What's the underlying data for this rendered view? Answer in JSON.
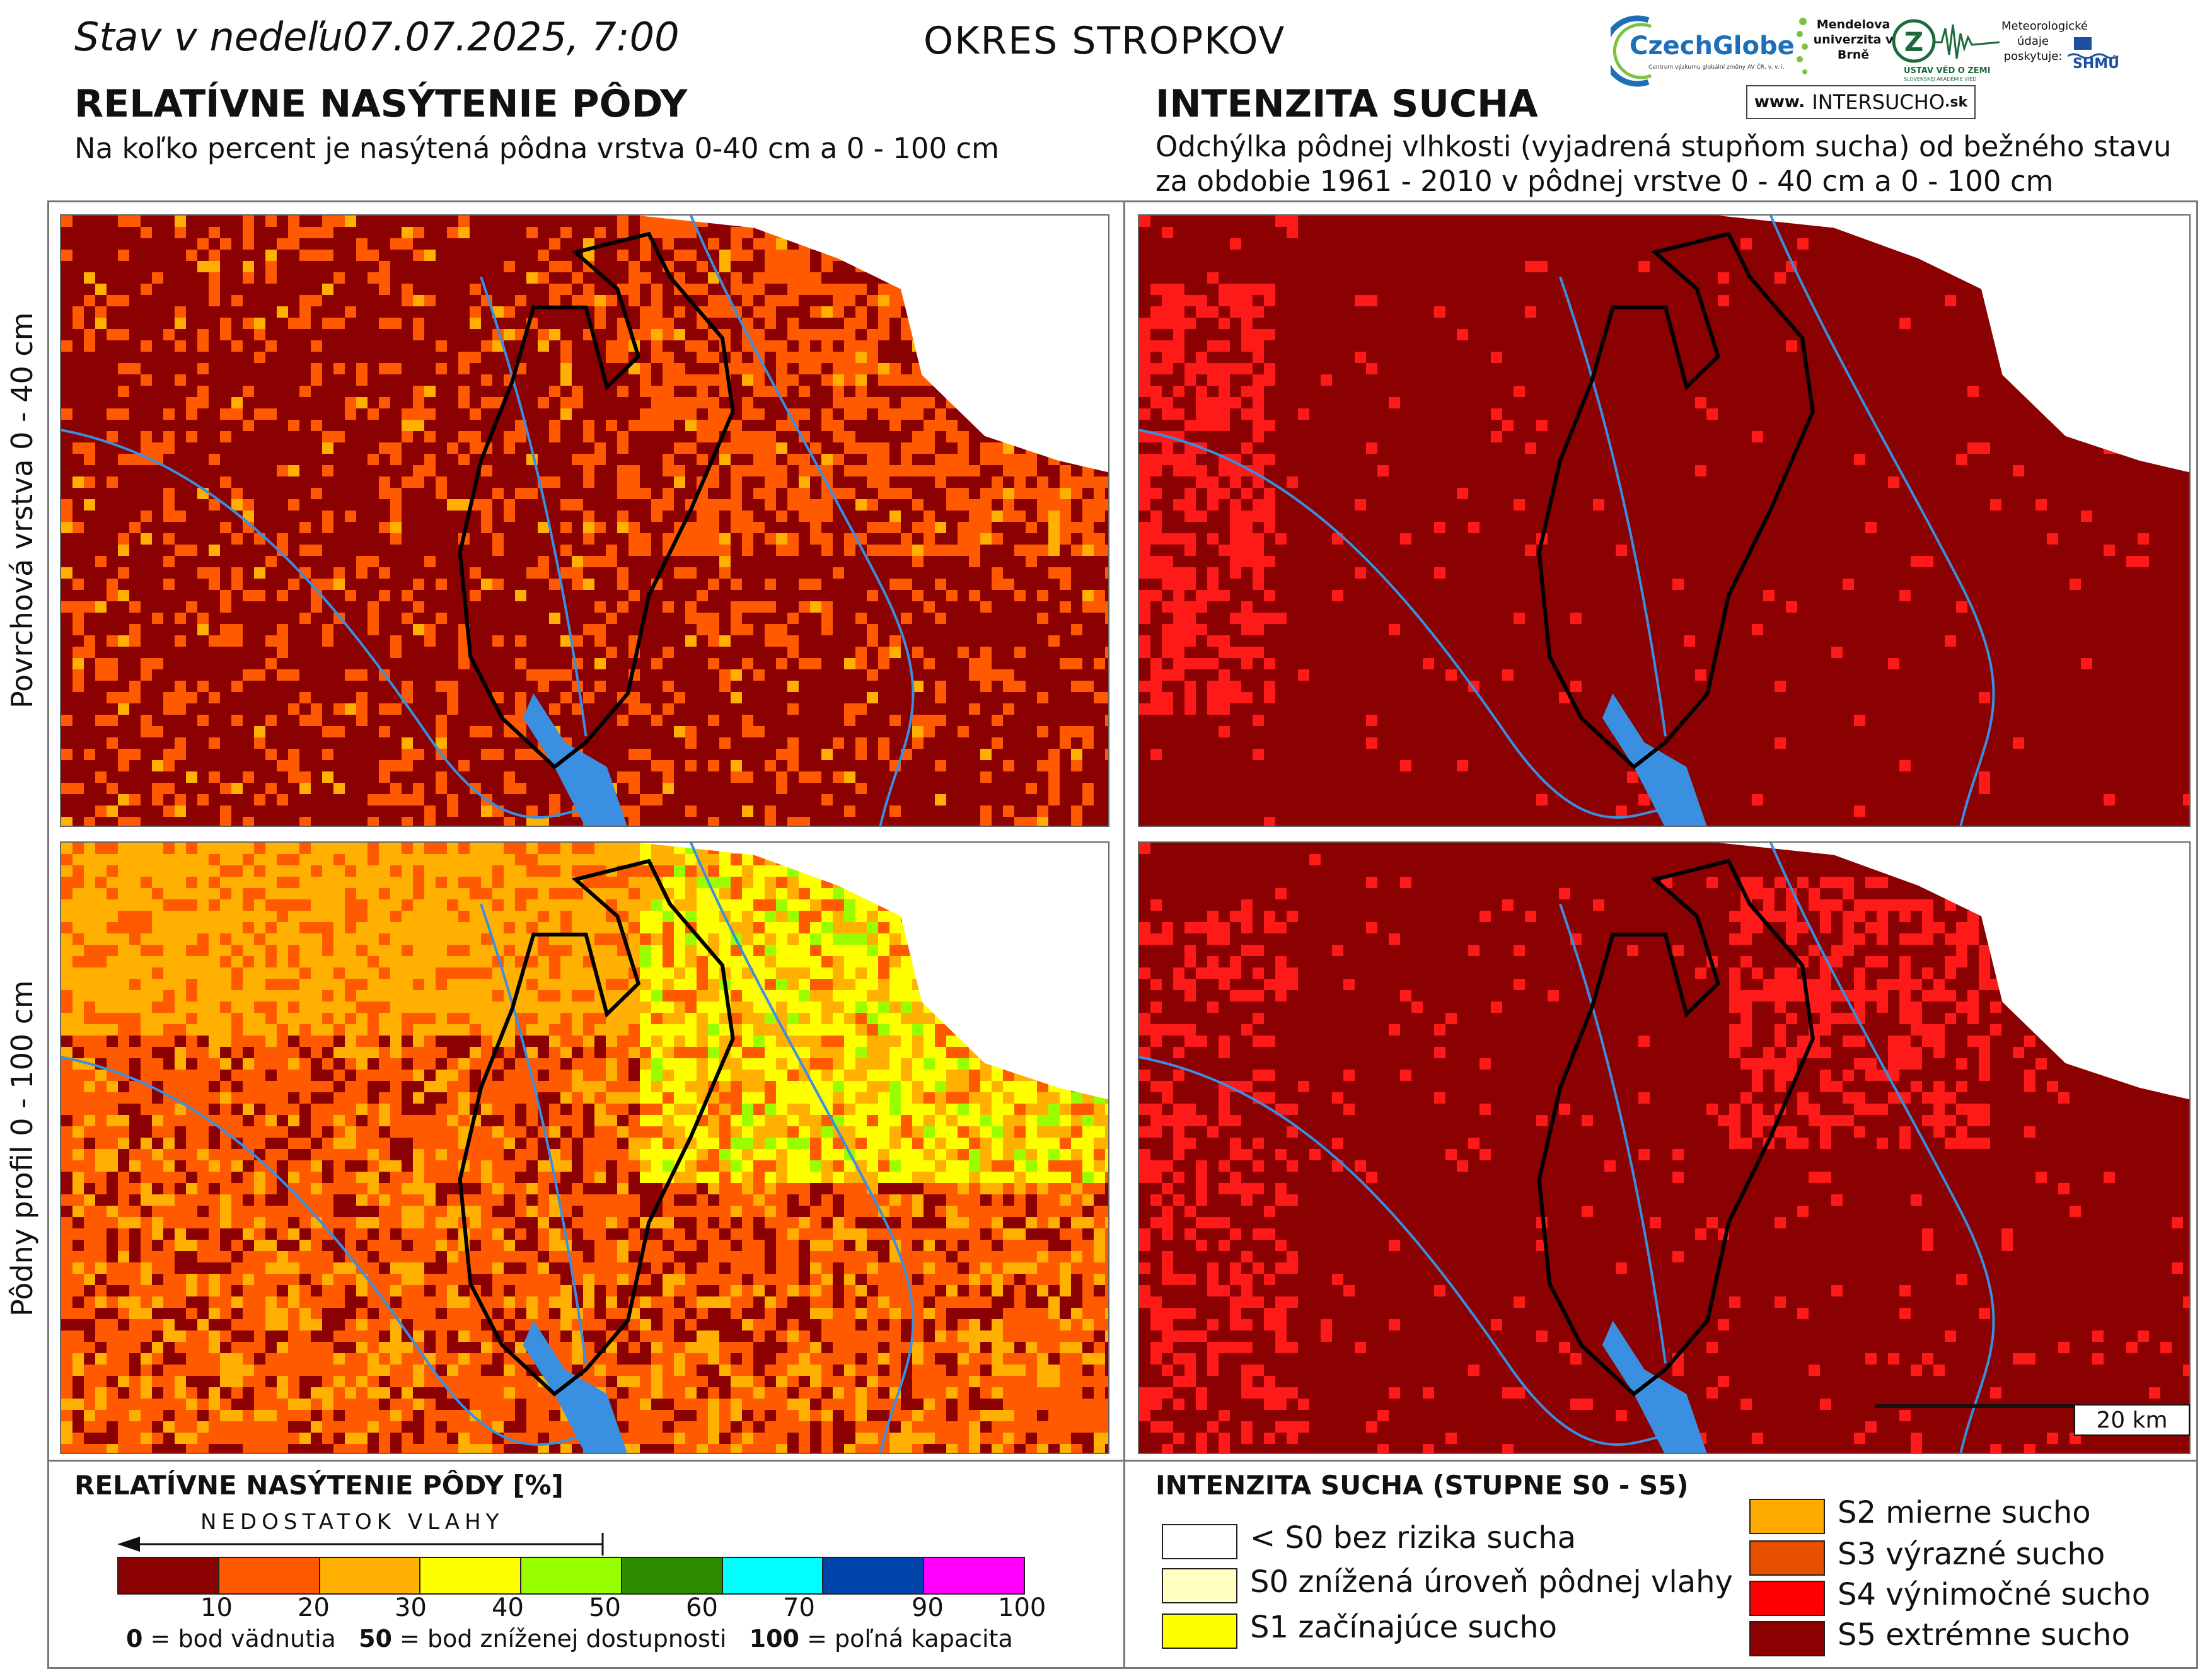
{
  "header": {
    "date": "Stav v nedeľu07.07.2025, 7:00",
    "district": "OKRES  STROPKOV"
  },
  "left_section": {
    "title": "RELATÍVNE NASÝTENIE PÔDY",
    "subtitle": "Na koľko percent je nasýtená pôdna vrstva 0-40 cm a 0 - 100 cm"
  },
  "right_section": {
    "title": "INTENZITA SUCHA",
    "subtitle_line1": "Odchýlka pôdnej vlhkosti (vyjadrená stupňom sucha) od bežného stavu",
    "subtitle_line2": "za obdobie 1961 - 2010 v pôdnej vrstve 0 - 40 cm a 0 - 100 cm"
  },
  "logos": {
    "czechglobe": "CzechGlobe",
    "czechglobe_small": "Centrum výzkumu globální změny AV ČR, v. v. i.",
    "mendel": "Mendelova univerzita v Brně",
    "ustav": "ÚSTAV VĚD O ZEMI",
    "ustav_small": "SLOVENSKEJ AKADÉMIE VIED",
    "meteo": "Meteorologické údaje poskytuje:",
    "shmu": "SHMÚ",
    "www_prefix": "www.",
    "www_main": "INTERSUCHO",
    "www_suffix": ".sk"
  },
  "row_labels": {
    "top": "Povrchová vrstva 0 - 40 cm",
    "bottom": "Pôdny profil 0 - 100 cm"
  },
  "scale_bar": "20 km",
  "legend_left": {
    "title": "RELATÍVNE NASÝTENIE PÔDY [%]",
    "arrow_label": "NEDOSTATOK VLAHY",
    "colors": [
      "#8b0000",
      "#ff5a00",
      "#ffb000",
      "#ffff00",
      "#99ff00",
      "#2e8b00",
      "#00ffff",
      "#0044aa",
      "#ff00ff"
    ],
    "ticks": [
      "10",
      "20",
      "30",
      "40",
      "50",
      "60",
      "70",
      "90",
      "100"
    ],
    "note_0_num": "0",
    "note_0_text": " = bod vädnutia",
    "note_50_num": "50",
    "note_50_text": " = bod zníženej dostupnosti",
    "note_100_num": "100",
    "note_100_text": " = poľná kapacita"
  },
  "legend_right": {
    "title": "INTENZITA SUCHA (STUPNE S0 - S5)",
    "items": [
      {
        "label": "< S0 bez rizika sucha",
        "color": "#ffffff"
      },
      {
        "label": "S0 znížená úroveň pôdnej vlahy",
        "color": "#ffffc0"
      },
      {
        "label": "S1 začínajúce sucho",
        "color": "#ffff00"
      },
      {
        "label": "S2 mierne sucho",
        "color": "#ffaa00"
      },
      {
        "label": "S3 výrazné sucho",
        "color": "#e85000"
      },
      {
        "label": "S4 výnimočné sucho",
        "color": "#ff0000"
      },
      {
        "label": "S5 extrémne sucho",
        "color": "#8b0000"
      }
    ]
  },
  "map_colors": {
    "dark_red": "#8b0000",
    "orange": "#ff5a00",
    "yellow_orange": "#ffb000",
    "yellow": "#ffff00",
    "light_green": "#99ff00",
    "green": "#2e8b00",
    "red": "#ff1a1a",
    "river": "#3a8fe0"
  }
}
